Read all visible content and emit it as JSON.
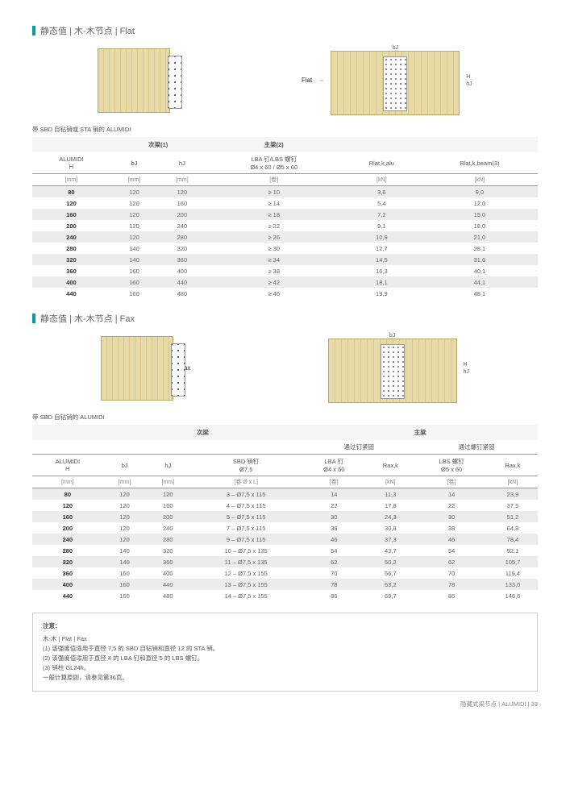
{
  "section1": {
    "title": "静态值 | 木-木节点 | Flat",
    "caption1": "带 SBD 自钻销或 STA 销的 ALUMIDI",
    "diagram_labels": {
      "fax": "Flat",
      "bj": "bJ",
      "h": "H",
      "hj": "hJ"
    },
    "table": {
      "group_headers": [
        "",
        "次梁(1)",
        "主梁(2)",
        "",
        ""
      ],
      "col_headers": [
        "ALUMIDI\nH",
        "bJ",
        "hJ",
        "LBA 钉/LBS 螺钉\nØ4 x 60 / Ø5 x 60",
        "Rlat,k,alu",
        "Rlat,k,beam(3)"
      ],
      "units": [
        "[mm]",
        "[mm]",
        "[mm]",
        "[卷]",
        "[kN]",
        "[kN]"
      ],
      "rows": [
        [
          "80",
          "120",
          "120",
          "≥ 10",
          "3,6",
          "9,0"
        ],
        [
          "120",
          "120",
          "160",
          "≥ 14",
          "5,4",
          "12,0"
        ],
        [
          "160",
          "120",
          "200",
          "≥ 18",
          "7,2",
          "15,0"
        ],
        [
          "200",
          "120",
          "240",
          "≥ 22",
          "9,1",
          "18,0"
        ],
        [
          "240",
          "120",
          "280",
          "≥ 26",
          "10,9",
          "21,0"
        ],
        [
          "280",
          "140",
          "320",
          "≥ 30",
          "12,7",
          "28,1"
        ],
        [
          "320",
          "140",
          "360",
          "≥ 34",
          "14,5",
          "31,6"
        ],
        [
          "360",
          "160",
          "400",
          "≥ 38",
          "16,3",
          "40,1"
        ],
        [
          "400",
          "160",
          "440",
          "≥ 42",
          "18,1",
          "44,1"
        ],
        [
          "440",
          "160",
          "480",
          "≥ 46",
          "19,9",
          "48,1"
        ]
      ]
    }
  },
  "section2": {
    "title": "静态值 | 木-木节点 | Fax",
    "caption1": "带 SBD 自钻销的 ALUMIDI",
    "diagram_labels": {
      "fax": "Fax",
      "bj": "bJ",
      "h": "H",
      "hj": "hJ"
    },
    "table": {
      "group_headers": [
        "",
        "次梁",
        "主梁"
      ],
      "sub_group_headers": [
        "",
        "",
        "",
        "",
        "通过钉紧固",
        "",
        "通过螺钉紧固",
        ""
      ],
      "col_headers": [
        "ALUMIDI\nH",
        "bJ",
        "hJ",
        "SBD 销钉\nØ7,5",
        "LBA 钉\nØ4 x 60",
        "Rax,k",
        "LBS 螺钉\nØ5 x 60",
        "Rax,k"
      ],
      "units": [
        "[mm]",
        "[mm]",
        "[mm]",
        "[卷 Ø x L]",
        "[卷]",
        "[kN]",
        "[卷]",
        "[kN]"
      ],
      "rows": [
        [
          "80",
          "120",
          "120",
          "3 – Ø7,5 x 115",
          "14",
          "11,3",
          "14",
          "23,9"
        ],
        [
          "120",
          "120",
          "160",
          "4 – Ø7,5 x 115",
          "22",
          "17,8",
          "22",
          "37,5"
        ],
        [
          "160",
          "120",
          "200",
          "5 – Ø7,5 x 115",
          "30",
          "24,3",
          "30",
          "51,2"
        ],
        [
          "200",
          "120",
          "240",
          "7 – Ø7,5 x 115",
          "38",
          "30,8",
          "38",
          "64,8"
        ],
        [
          "240",
          "120",
          "280",
          "9 – Ø7,5 x 115",
          "46",
          "37,3",
          "46",
          "78,4"
        ],
        [
          "280",
          "140",
          "320",
          "10 – Ø7,5 x 135",
          "54",
          "43,7",
          "54",
          "92,1"
        ],
        [
          "320",
          "140",
          "360",
          "11 – Ø7,5 x 135",
          "62",
          "50,2",
          "62",
          "105,7"
        ],
        [
          "360",
          "160",
          "400",
          "12 – Ø7,5 x 155",
          "70",
          "56,7",
          "70",
          "119,4"
        ],
        [
          "400",
          "160",
          "440",
          "13 – Ø7,5 x 155",
          "78",
          "63,2",
          "78",
          "133,0"
        ],
        [
          "440",
          "160",
          "480",
          "14 – Ø7,5 x 155",
          "86",
          "69,7",
          "86",
          "146,6"
        ]
      ]
    }
  },
  "notes": {
    "title": "注意：",
    "subtitle": "木-木 | Flat | Fax",
    "items": [
      "(1) 该强度值适用于直径 7,5 的 SBD 自钻销和直径 12 的 STA 销。",
      "(2) 该强度值适用于直径 4 的 LBA 钉和直径 5 的 LBS 螺钉。",
      "(3) 销柱 GL24h。",
      "一般计算原则，请参见第36页。"
    ]
  },
  "footer": "隐藏式梁节点  |  ALUMIDI  |  33"
}
